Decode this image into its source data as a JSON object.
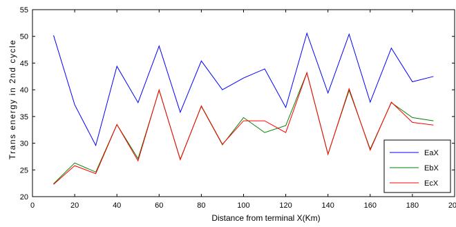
{
  "chart_data": {
    "type": "line",
    "xlabel": "Distance from terminal X(Km)",
    "ylabel": "Trans energy in 2nd cycle",
    "xlim": [
      0,
      200
    ],
    "ylim": [
      20,
      55
    ],
    "xticks": [
      0,
      20,
      40,
      60,
      80,
      100,
      120,
      140,
      160,
      180,
      200
    ],
    "yticks": [
      20,
      25,
      30,
      35,
      40,
      45,
      50,
      55
    ],
    "grid": false,
    "legend_position": "bottom-right",
    "x": [
      10,
      20,
      30,
      40,
      50,
      60,
      70,
      80,
      90,
      100,
      110,
      120,
      130,
      140,
      150,
      160,
      170,
      180,
      190
    ],
    "series": [
      {
        "name": "EaX",
        "color": "#0000ff",
        "values": [
          50.2,
          37.2,
          29.6,
          44.4,
          37.6,
          48.2,
          35.8,
          45.4,
          40.0,
          42.2,
          43.9,
          36.7,
          50.6,
          39.4,
          50.4,
          37.7,
          47.8,
          41.5,
          42.5
        ]
      },
      {
        "name": "EbX",
        "color": "#008000",
        "values": [
          22.4,
          26.3,
          24.6,
          33.5,
          27.1,
          39.9,
          27.0,
          36.9,
          29.7,
          34.8,
          32.0,
          33.3,
          43.2,
          28.0,
          39.9,
          28.9,
          37.6,
          34.8,
          34.2
        ]
      },
      {
        "name": "EcX",
        "color": "#ff0000",
        "values": [
          22.3,
          25.8,
          24.3,
          33.5,
          26.7,
          40.0,
          26.9,
          37.0,
          29.8,
          34.2,
          34.2,
          32.0,
          43.2,
          27.9,
          40.2,
          28.7,
          37.7,
          33.9,
          33.4
        ]
      }
    ]
  }
}
